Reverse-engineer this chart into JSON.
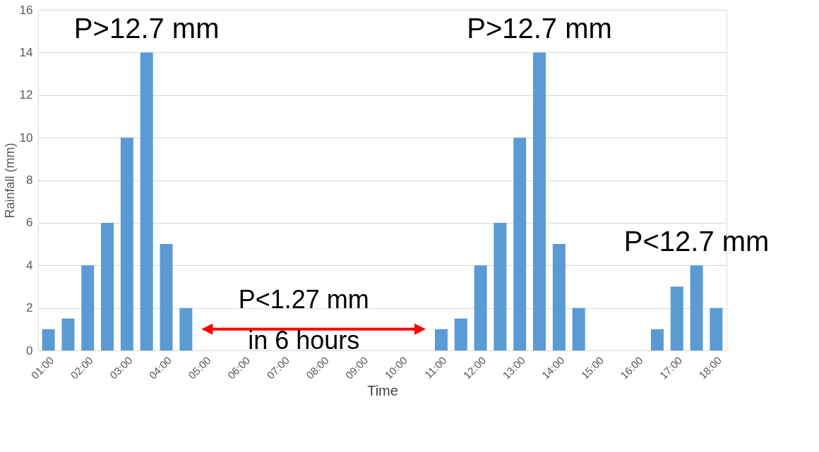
{
  "chart_data": {
    "type": "bar",
    "xlabel": "Time",
    "ylabel": "Rainfall (mm)",
    "categories": [
      "01:00",
      null,
      "02:00",
      null,
      "03:00",
      null,
      "04:00",
      null,
      "05:00",
      null,
      "06:00",
      null,
      "07:00",
      null,
      "08:00",
      null,
      "09:00",
      null,
      "10:00",
      null,
      "11:00",
      null,
      "12:00",
      null,
      "13:00",
      null,
      "14:00",
      null,
      "15:00",
      null,
      "16:00",
      null,
      "17:00",
      null,
      "18:00"
    ],
    "values": [
      1,
      1.5,
      4,
      6,
      10,
      14,
      5,
      2,
      0,
      0,
      0,
      0,
      0,
      0,
      0,
      0,
      0,
      0,
      0,
      0,
      1,
      1.5,
      4,
      6,
      10,
      14,
      5,
      2,
      0,
      0,
      0,
      1,
      3,
      4,
      2
    ],
    "color": "#5b9bd5",
    "ylim": [
      0,
      16
    ],
    "yticks": [
      0,
      2,
      4,
      6,
      8,
      10,
      12,
      14,
      16
    ],
    "grid": "y",
    "annotations": [
      "P>12.7 mm",
      "P>12.7 mm",
      "P<12.7 mm",
      "P<1.27 mm\nin 6 hours"
    ]
  }
}
